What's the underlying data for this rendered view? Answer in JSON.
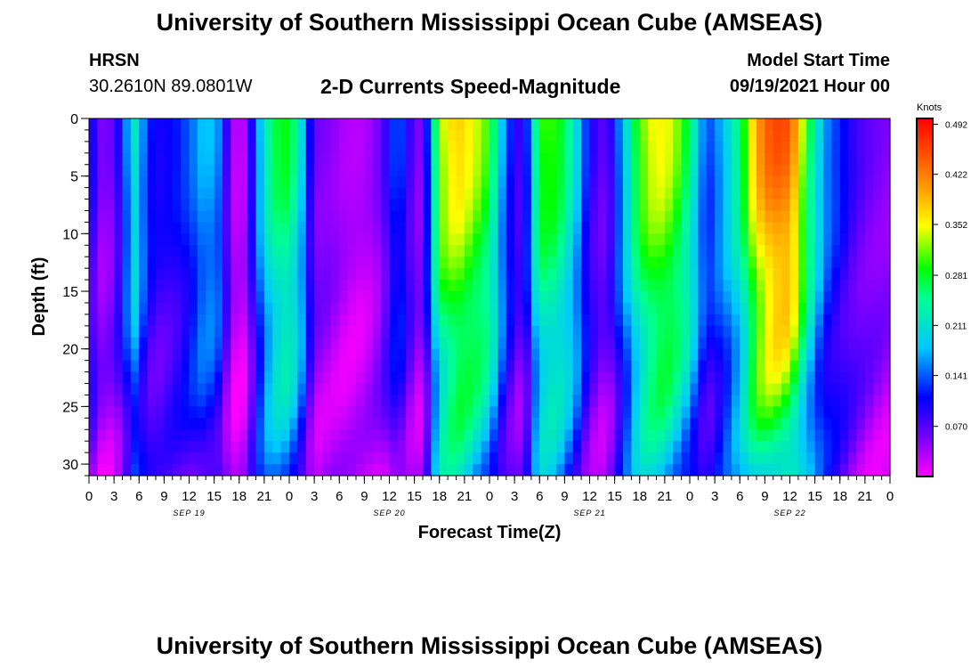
{
  "header": {
    "title": "University of Southern Mississippi Ocean Cube (AMSEAS)",
    "station": "HRSN",
    "coords": "30.2610N  89.0801W",
    "model_start_label": "Model Start Time",
    "model_start_value": "09/19/2021 Hour 00",
    "footer_title": "University of Southern Mississippi Ocean Cube (AMSEAS)"
  },
  "chart_data": {
    "type": "heatmap",
    "title": "2-D Currents Speed-Magnitude",
    "xlabel": "Forecast Time(Z)",
    "ylabel": "Depth (ft)",
    "y_ticks": [
      0,
      5,
      10,
      15,
      20,
      25,
      30
    ],
    "ylim": [
      0,
      31
    ],
    "x_tick_labels": [
      "0",
      "3",
      "6",
      "9",
      "12",
      "15",
      "18",
      "21",
      "0",
      "3",
      "6",
      "9",
      "12",
      "15",
      "18",
      "21",
      "0",
      "3",
      "6",
      "9",
      "12",
      "15",
      "18",
      "21",
      "0",
      "3",
      "6",
      "9",
      "12",
      "15",
      "18",
      "21",
      "0"
    ],
    "date_labels": [
      {
        "label": "SEP 19",
        "hour": 12
      },
      {
        "label": "SEP 20",
        "hour": 36
      },
      {
        "label": "SEP 21",
        "hour": 60
      },
      {
        "label": "SEP 22",
        "hour": 84
      }
    ],
    "xlim_hours": [
      0,
      96
    ],
    "colorbar": {
      "unit": "Knots",
      "ticks": [
        0.492,
        0.422,
        0.352,
        0.281,
        0.211,
        0.141,
        0.07
      ],
      "tick_labels": [
        "0.492",
        "0.422",
        "0.352",
        "0.281",
        "0.211",
        "0.141",
        "0.070"
      ],
      "range": [
        0.0,
        0.5
      ]
    },
    "surface_speed_profile": [
      {
        "hour": 0,
        "v": 0.14
      },
      {
        "hour": 1,
        "v": 0.05
      },
      {
        "hour": 3,
        "v": 0.06
      },
      {
        "hour": 4,
        "v": 0.13
      },
      {
        "hour": 5.5,
        "v": 0.22
      },
      {
        "hour": 7,
        "v": 0.13
      },
      {
        "hour": 8,
        "v": 0.1
      },
      {
        "hour": 10,
        "v": 0.11
      },
      {
        "hour": 12,
        "v": 0.14
      },
      {
        "hour": 14,
        "v": 0.19
      },
      {
        "hour": 15.5,
        "v": 0.16
      },
      {
        "hour": 17,
        "v": 0.05
      },
      {
        "hour": 18,
        "v": 0.01
      },
      {
        "hour": 19,
        "v": 0.05
      },
      {
        "hour": 20,
        "v": 0.15
      },
      {
        "hour": 22,
        "v": 0.27
      },
      {
        "hour": 24,
        "v": 0.29
      },
      {
        "hour": 25.5,
        "v": 0.2
      },
      {
        "hour": 27,
        "v": 0.06
      },
      {
        "hour": 29,
        "v": 0.05
      },
      {
        "hour": 31,
        "v": 0.03
      },
      {
        "hour": 33,
        "v": 0.03
      },
      {
        "hour": 35,
        "v": 0.06
      },
      {
        "hour": 37,
        "v": 0.15
      },
      {
        "hour": 39,
        "v": 0.06
      },
      {
        "hour": 40,
        "v": 0.05
      },
      {
        "hour": 42,
        "v": 0.33
      },
      {
        "hour": 44,
        "v": 0.38
      },
      {
        "hour": 46,
        "v": 0.35
      },
      {
        "hour": 48,
        "v": 0.3
      },
      {
        "hour": 50,
        "v": 0.14
      },
      {
        "hour": 52,
        "v": 0.07
      },
      {
        "hour": 54,
        "v": 0.3
      },
      {
        "hour": 56,
        "v": 0.3
      },
      {
        "hour": 58,
        "v": 0.23
      },
      {
        "hour": 60,
        "v": 0.1
      },
      {
        "hour": 62,
        "v": 0.06
      },
      {
        "hour": 64,
        "v": 0.18
      },
      {
        "hour": 66,
        "v": 0.31
      },
      {
        "hour": 68,
        "v": 0.36
      },
      {
        "hour": 70,
        "v": 0.34
      },
      {
        "hour": 72,
        "v": 0.26
      },
      {
        "hour": 74,
        "v": 0.13
      },
      {
        "hour": 76,
        "v": 0.18
      },
      {
        "hour": 78,
        "v": 0.26
      },
      {
        "hour": 80,
        "v": 0.4
      },
      {
        "hour": 82,
        "v": 0.46
      },
      {
        "hour": 84,
        "v": 0.45
      },
      {
        "hour": 86,
        "v": 0.3
      },
      {
        "hour": 88,
        "v": 0.17
      },
      {
        "hour": 90,
        "v": 0.12
      },
      {
        "hour": 92,
        "v": 0.08
      },
      {
        "hour": 94,
        "v": 0.06
      },
      {
        "hour": 96,
        "v": 0.05
      }
    ]
  }
}
